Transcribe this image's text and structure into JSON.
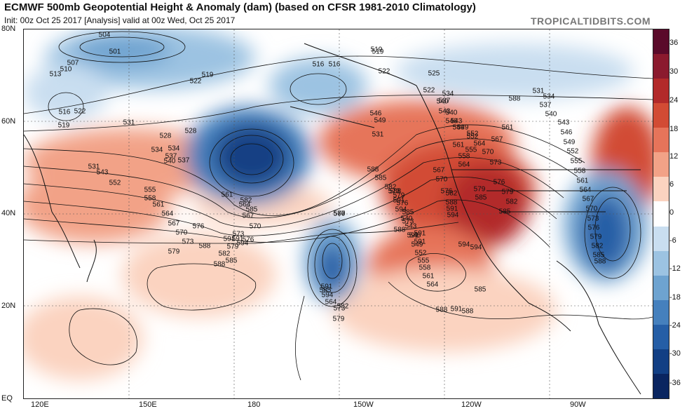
{
  "header": {
    "title": "ECMWF 500mb Geopotential Height & Anomaly (dam) (based on CFSR 1981-2010 Climatology)",
    "subtitle": "Init: 00z Oct 25 2017  [Analysis]  valid at 00z Wed, Oct 25 2017",
    "brand": "TROPICALTIDBITS.COM"
  },
  "axes": {
    "lat_labels": [
      "80N",
      "60N",
      "40N",
      "20N",
      "EQ"
    ],
    "lon_labels": [
      "120E",
      "150E",
      "180",
      "150W",
      "120W",
      "90W"
    ]
  },
  "colorbar": {
    "labels": [
      "36",
      "30",
      "24",
      "18",
      "12",
      "6",
      "0",
      "-6",
      "-12",
      "-18",
      "-24",
      "-30",
      "-36"
    ],
    "colors": [
      "#5a0a2a",
      "#8b1a2e",
      "#b22a2a",
      "#d24b34",
      "#e6745a",
      "#f2a287",
      "#fbd3c0",
      "#ffffff",
      "#c9def0",
      "#9cc3e2",
      "#6ea3d0",
      "#4580bd",
      "#255ea6",
      "#123f84",
      "#0a2560"
    ]
  },
  "contours": {
    "labels": [
      "504",
      "501",
      "507",
      "510",
      "513",
      "516",
      "519",
      "522",
      "519",
      "522",
      "516",
      "519",
      "525",
      "522",
      "534",
      "537",
      "531",
      "528",
      "540",
      "543",
      "546",
      "549",
      "552",
      "555",
      "558",
      "561",
      "564",
      "567",
      "570",
      "573",
      "576",
      "579",
      "582",
      "585",
      "588",
      "591",
      "594",
      "591",
      "594",
      "531",
      "534",
      "537",
      "540",
      "543",
      "549",
      "552",
      "555",
      "558",
      "561",
      "564",
      "567",
      "570",
      "573",
      "576",
      "579",
      "582",
      "585",
      "588",
      "591",
      "594",
      "561",
      "564",
      "567",
      "570",
      "573",
      "576",
      "579",
      "582",
      "585",
      "588",
      "591",
      "516",
      "519",
      "522",
      "528",
      "531",
      "534",
      "537",
      "540",
      "543",
      "546",
      "549",
      "552",
      "561",
      "564",
      "567",
      "570",
      "573",
      "576",
      "579",
      "582",
      "585",
      "588",
      "531",
      "534",
      "537",
      "540",
      "543",
      "546",
      "549",
      "552",
      "555",
      "558",
      "561",
      "564",
      "567",
      "570",
      "573",
      "576",
      "579",
      "582",
      "585",
      "588",
      "591",
      "594",
      "591",
      "588",
      "585",
      "573",
      "576",
      "579",
      "582",
      "585",
      "588",
      "591",
      "594",
      "564",
      "573",
      "579",
      "582",
      "585",
      "588",
      "591",
      "588",
      "585",
      "588",
      "591",
      "594",
      "540",
      "543",
      "546",
      "549",
      "552",
      "555",
      "558",
      "561",
      "564",
      "567",
      "570",
      "576"
    ]
  },
  "features": {
    "low_gulf_of_alaska": "closed low",
    "low_subtropical_pacific": "cutoff low",
    "low_eastern_us": "trough",
    "ridge_west_coast": "ridge"
  }
}
